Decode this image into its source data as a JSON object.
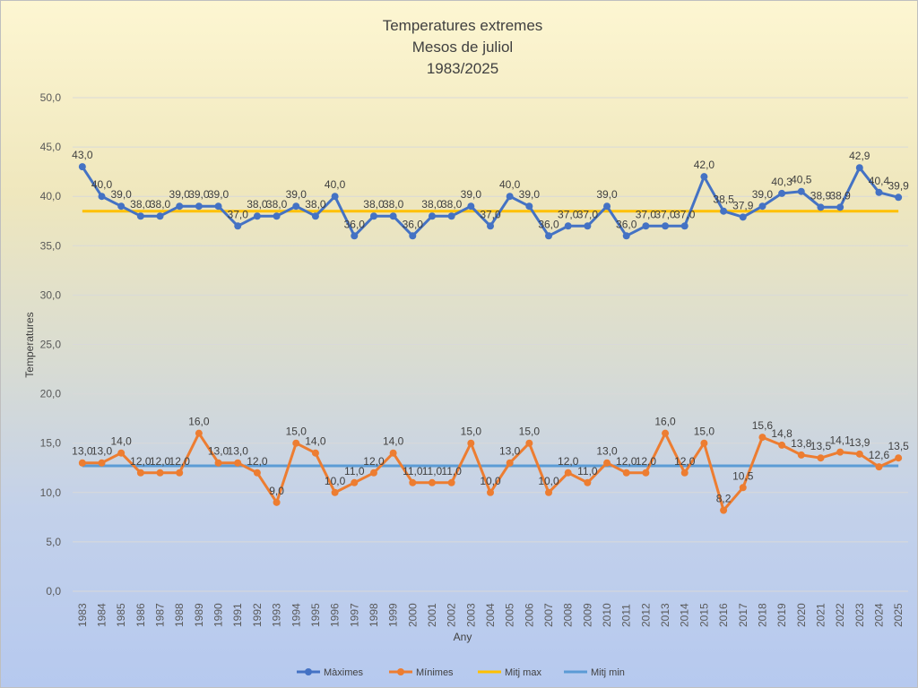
{
  "chart_data": {
    "type": "line",
    "title": [
      "Temperatures  extremes",
      "Mesos de juliol",
      "1983/2025"
    ],
    "xlabel": "Any",
    "ylabel": "Temperatures",
    "ylim": [
      0,
      50
    ],
    "y_ticks": [
      "0,0",
      "5,0",
      "10,0",
      "15,0",
      "20,0",
      "25,0",
      "30,0",
      "35,0",
      "40,0",
      "45,0",
      "50,0"
    ],
    "grid": true,
    "legend_position": "bottom",
    "categories": [
      "1983",
      "1984",
      "1985",
      "1986",
      "1987",
      "1988",
      "1989",
      "1990",
      "1991",
      "1992",
      "1993",
      "1994",
      "1995",
      "1996",
      "1997",
      "1998",
      "1999",
      "2000",
      "2001",
      "2002",
      "2003",
      "2004",
      "2005",
      "2006",
      "2007",
      "2008",
      "2009",
      "2010",
      "2011",
      "2012",
      "2013",
      "2014",
      "2015",
      "2016",
      "2017",
      "2018",
      "2019",
      "2020",
      "2021",
      "2022",
      "2023",
      "2024",
      "2025"
    ],
    "series": [
      {
        "name": "Màximes",
        "color": "#4472c4",
        "values": [
          43.0,
          40.0,
          39.0,
          38.0,
          38.0,
          39.0,
          39.0,
          39.0,
          37.0,
          38.0,
          38.0,
          39.0,
          38.0,
          40.0,
          36.0,
          38.0,
          38.0,
          36.0,
          38.0,
          38.0,
          39.0,
          37.0,
          40.0,
          39.0,
          36.0,
          37.0,
          37.0,
          39.0,
          36.0,
          37.0,
          37.0,
          37.0,
          42.0,
          38.5,
          37.9,
          39.0,
          40.3,
          40.5,
          38.9,
          38.9,
          42.9,
          40.4,
          39.9
        ],
        "labels": [
          "43,0",
          "40,0",
          "39,0",
          "38,0",
          "38,0",
          "39,0",
          "39,0",
          "39,0",
          "37,0",
          "38,0",
          "38,0",
          "39,0",
          "38,0",
          "40,0",
          "36,0",
          "38,0",
          "38,0",
          "36,0",
          "38,0",
          "38,0",
          "39,0",
          "37,0",
          "40,0",
          "39,0",
          "36,0",
          "37,0",
          "37,0",
          "39,0",
          "36,0",
          "37,0",
          "37,0",
          "37,0",
          "42,0",
          "38,5",
          "37,9",
          "39,0",
          "40,3",
          "40,5",
          "38,9",
          "38,9",
          "42,9",
          "40,4",
          "39,9"
        ]
      },
      {
        "name": "Mínimes",
        "color": "#ed7d31",
        "values": [
          13.0,
          13.0,
          14.0,
          12.0,
          12.0,
          12.0,
          16.0,
          13.0,
          13.0,
          12.0,
          9.0,
          15.0,
          14.0,
          10.0,
          11.0,
          12.0,
          14.0,
          11.0,
          11.0,
          11.0,
          15.0,
          10.0,
          13.0,
          15.0,
          10.0,
          12.0,
          11.0,
          13.0,
          12.0,
          12.0,
          16.0,
          12.0,
          15.0,
          8.2,
          10.5,
          15.6,
          14.8,
          13.8,
          13.5,
          14.1,
          13.9,
          12.6,
          13.5
        ],
        "labels": [
          "13,0",
          "13,0",
          "14,0",
          "12,0",
          "12,0",
          "12,0",
          "16,0",
          "13,0",
          "13,0",
          "12,0",
          "9,0",
          "15,0",
          "14,0",
          "10,0",
          "11,0",
          "12,0",
          "14,0",
          "11,0",
          "11,0",
          "11,0",
          "15,0",
          "10,0",
          "13,0",
          "15,0",
          "10,0",
          "12,0",
          "11,0",
          "13,0",
          "12,0",
          "12,0",
          "16,0",
          "12,0",
          "15,0",
          "8,2",
          "10,5",
          "15,6",
          "14,8",
          "13,8",
          "13,5",
          "14,1",
          "13,9",
          "12,6",
          "13,5"
        ]
      },
      {
        "name": "Mitj max",
        "color": "#ffc000",
        "value": 38.5
      },
      {
        "name": "Mitj min",
        "color": "#5b9bd5",
        "value": 12.7
      }
    ]
  }
}
